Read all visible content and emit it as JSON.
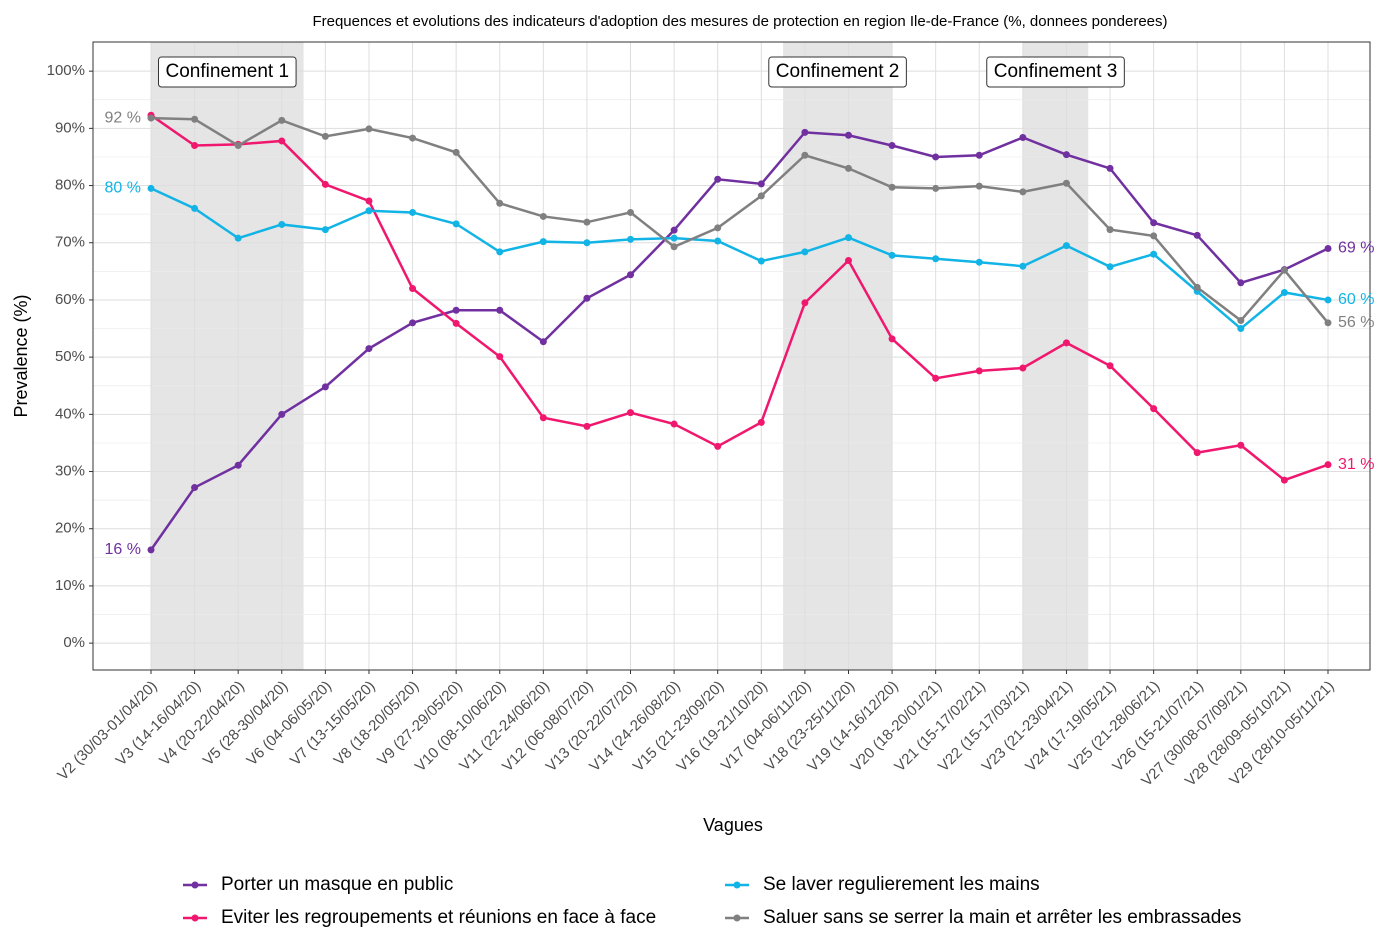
{
  "chart_data": {
    "type": "line",
    "title": "Frequences et evolutions des indicateurs d'adoption des mesures de protection en region Ile-de-France (%, donnees ponderees)",
    "x_label": "Vagues",
    "y_label": "Prevalence (%)",
    "categories": [
      "V2 (30/03-01/04/20)",
      "V3 (14-16/04/20)",
      "V4 (20-22/04/20)",
      "V5 (28-30/04/20)",
      "V6 (04-06/05/20)",
      "V7 (13-15/05/20)",
      "V8 (18-20/05/20)",
      "V9 (27-29/05/20)",
      "V10 (08-10/06/20)",
      "V11 (22-24/06/20)",
      "V12 (06-08/07/20)",
      "V13 (20-22/07/20)",
      "V14 (24-26/08/20)",
      "V15 (21-23/09/20)",
      "V16 (19-21/10/20)",
      "V17 (04-06/11/20)",
      "V18 (23-25/11/20)",
      "V19 (14-16/12/20)",
      "V20 (18-20/01/21)",
      "V21 (15-17/02/21)",
      "V22 (15-17/03/21)",
      "V23 (21-23/04/21)",
      "V24 (17-19/05/21)",
      "V25 (21-28/06/21)",
      "V26 (15-21/07/21)",
      "V27 (30/08-07/09/21)",
      "V28 (28/09-05/10/21)",
      "V29 (28/10-05/11/21)"
    ],
    "series": [
      {
        "name": "Porter un masque en public",
        "color": "#7030a0",
        "values": [
          16.3,
          27.2,
          31.1,
          40,
          44.8,
          51.5,
          56,
          58.2,
          58.2,
          52.7,
          60.3,
          64.4,
          72.2,
          81.1,
          80.3,
          89.3,
          88.8,
          87,
          85,
          85.3,
          88.4,
          85.4,
          83,
          73.5,
          71.3,
          63,
          65.3,
          69
        ],
        "value_labels": [
          "16 %",
          null,
          null,
          null,
          null,
          null,
          null,
          null,
          null,
          null,
          null,
          null,
          null,
          null,
          null,
          null,
          null,
          null,
          null,
          null,
          null,
          null,
          null,
          null,
          null,
          null,
          null,
          "69 %"
        ]
      },
      {
        "name": "Eviter les regroupements et réunions en face à face",
        "color": "#f0186e",
        "values": [
          92.3,
          87,
          87.2,
          87.8,
          80.2,
          77.3,
          62,
          55.9,
          50.1,
          39.4,
          37.9,
          40.3,
          38.3,
          34.4,
          38.6,
          59.5,
          66.9,
          53.2,
          46.3,
          47.6,
          48.1,
          52.5,
          48.5,
          41,
          33.3,
          34.6,
          28.5,
          31.2
        ],
        "value_labels": [
          null,
          null,
          null,
          null,
          null,
          null,
          null,
          null,
          null,
          null,
          null,
          null,
          null,
          null,
          null,
          null,
          null,
          null,
          null,
          null,
          null,
          null,
          null,
          null,
          null,
          null,
          null,
          "31 %"
        ]
      },
      {
        "name": "Se laver regulierement les mains",
        "color": "#12b4e6",
        "values": [
          79.5,
          76,
          70.8,
          73.2,
          72.3,
          75.6,
          75.3,
          73.3,
          68.4,
          70.2,
          70,
          70.6,
          70.8,
          70.3,
          66.8,
          68.4,
          70.9,
          67.8,
          67.2,
          66.6,
          65.9,
          69.5,
          65.8,
          68,
          61.5,
          55,
          61.3,
          60
        ],
        "value_labels": [
          "80 %",
          null,
          null,
          null,
          null,
          null,
          null,
          null,
          null,
          null,
          null,
          null,
          null,
          null,
          null,
          null,
          null,
          null,
          null,
          null,
          null,
          null,
          null,
          null,
          null,
          null,
          null,
          "60 %"
        ]
      },
      {
        "name": "Saluer sans se serrer la main et arrêter les embrassades",
        "color": "#808080",
        "values": [
          91.8,
          91.6,
          87,
          91.4,
          88.6,
          89.9,
          88.3,
          85.8,
          76.9,
          74.6,
          73.6,
          75.3,
          69.3,
          72.6,
          78.2,
          85.3,
          83,
          79.7,
          79.5,
          79.9,
          78.9,
          80.4,
          72.3,
          71.2,
          62.2,
          56.4,
          65.2,
          56
        ],
        "value_labels": [
          "92 %",
          null,
          null,
          null,
          null,
          null,
          null,
          null,
          null,
          null,
          null,
          null,
          null,
          null,
          null,
          null,
          null,
          null,
          null,
          null,
          null,
          null,
          null,
          null,
          null,
          null,
          null,
          "56 %"
        ]
      }
    ],
    "periods": [
      {
        "text": "Confinement 1",
        "start": 0,
        "end": 3.5
      },
      {
        "text": "Confinement 2",
        "start": 14.5,
        "end": 17
      },
      {
        "text": "Confinement 3",
        "start": 20,
        "end": 21.5
      }
    ],
    "ylim": [
      -4.7,
      105.1
    ],
    "yticks": [
      {
        "value": 0,
        "label": "0%"
      },
      {
        "value": 10,
        "label": "10%"
      },
      {
        "value": 20,
        "label": "20%"
      },
      {
        "value": 30,
        "label": "30%"
      },
      {
        "value": 40,
        "label": "40%"
      },
      {
        "value": 50,
        "label": "50%"
      },
      {
        "value": 60,
        "label": "60%"
      },
      {
        "value": 70,
        "label": "70%"
      },
      {
        "value": 80,
        "label": "80%"
      },
      {
        "value": 90,
        "label": "90%"
      },
      {
        "value": 100,
        "label": "100%"
      }
    ],
    "y_minor_ticks": [
      5,
      15,
      25,
      35,
      45,
      55,
      65,
      75,
      85,
      95
    ],
    "grid": true,
    "legend": "bottom"
  }
}
